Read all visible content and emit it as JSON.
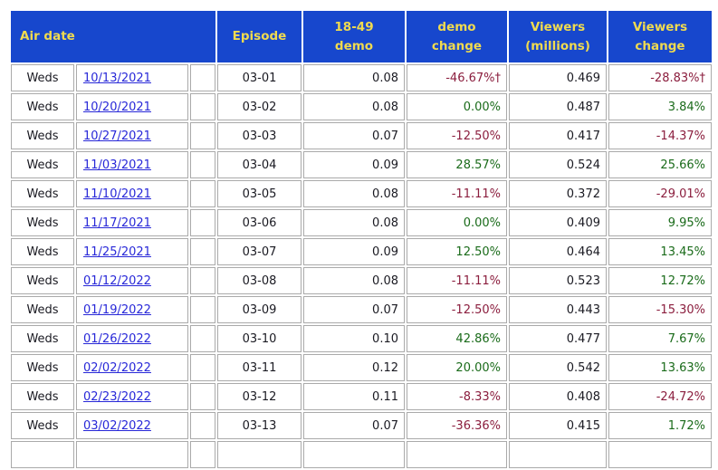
{
  "table": {
    "headers": {
      "air_date": "Air date",
      "episode": "Episode",
      "demo": {
        "line1": "18-49",
        "line2": "demo"
      },
      "demo_change": {
        "line1": "demo",
        "line2": "change"
      },
      "viewers": {
        "line1": "Viewers",
        "line2": "(millions)"
      },
      "viewers_change": {
        "line1": "Viewers",
        "line2": "change"
      }
    },
    "rows": [
      {
        "day": "Weds",
        "date": "10/13/2021",
        "episode": "03-01",
        "demo": "0.08",
        "demo_change": "-46.67%†",
        "viewers": "0.469",
        "viewers_change": "-28.83%†"
      },
      {
        "day": "Weds",
        "date": "10/20/2021",
        "episode": "03-02",
        "demo": "0.08",
        "demo_change": "0.00%",
        "viewers": "0.487",
        "viewers_change": "3.84%"
      },
      {
        "day": "Weds",
        "date": "10/27/2021",
        "episode": "03-03",
        "demo": "0.07",
        "demo_change": "-12.50%",
        "viewers": "0.417",
        "viewers_change": "-14.37%"
      },
      {
        "day": "Weds",
        "date": "11/03/2021",
        "episode": "03-04",
        "demo": "0.09",
        "demo_change": "28.57%",
        "viewers": "0.524",
        "viewers_change": "25.66%"
      },
      {
        "day": "Weds",
        "date": "11/10/2021",
        "episode": "03-05",
        "demo": "0.08",
        "demo_change": "-11.11%",
        "viewers": "0.372",
        "viewers_change": "-29.01%"
      },
      {
        "day": "Weds",
        "date": "11/17/2021",
        "episode": "03-06",
        "demo": "0.08",
        "demo_change": "0.00%",
        "viewers": "0.409",
        "viewers_change": "9.95%"
      },
      {
        "day": "Weds",
        "date": "11/25/2021",
        "episode": "03-07",
        "demo": "0.09",
        "demo_change": "12.50%",
        "viewers": "0.464",
        "viewers_change": "13.45%"
      },
      {
        "day": "Weds",
        "date": "01/12/2022",
        "episode": "03-08",
        "demo": "0.08",
        "demo_change": "-11.11%",
        "viewers": "0.523",
        "viewers_change": "12.72%"
      },
      {
        "day": "Weds",
        "date": "01/19/2022",
        "episode": "03-09",
        "demo": "0.07",
        "demo_change": "-12.50%",
        "viewers": "0.443",
        "viewers_change": "-15.30%"
      },
      {
        "day": "Weds",
        "date": "01/26/2022",
        "episode": "03-10",
        "demo": "0.10",
        "demo_change": "42.86%",
        "viewers": "0.477",
        "viewers_change": "7.67%"
      },
      {
        "day": "Weds",
        "date": "02/02/2022",
        "episode": "03-11",
        "demo": "0.12",
        "demo_change": "20.00%",
        "viewers": "0.542",
        "viewers_change": "13.63%"
      },
      {
        "day": "Weds",
        "date": "02/23/2022",
        "episode": "03-12",
        "demo": "0.11",
        "demo_change": "-8.33%",
        "viewers": "0.408",
        "viewers_change": "-24.72%"
      },
      {
        "day": "Weds",
        "date": "03/02/2022",
        "episode": "03-13",
        "demo": "0.07",
        "demo_change": "-36.36%",
        "viewers": "0.415",
        "viewers_change": "1.72%"
      }
    ],
    "partial_row_visible": true
  },
  "colors": {
    "page_bg": "#FFFFFF",
    "header_bg": "#1747CD",
    "header_text": "#F0DB4F",
    "link": "#2828D8",
    "negative": "#8B1E3E",
    "positive": "#1A6B1A",
    "grid": "#AAAAAA",
    "text": "#1A1A22"
  }
}
